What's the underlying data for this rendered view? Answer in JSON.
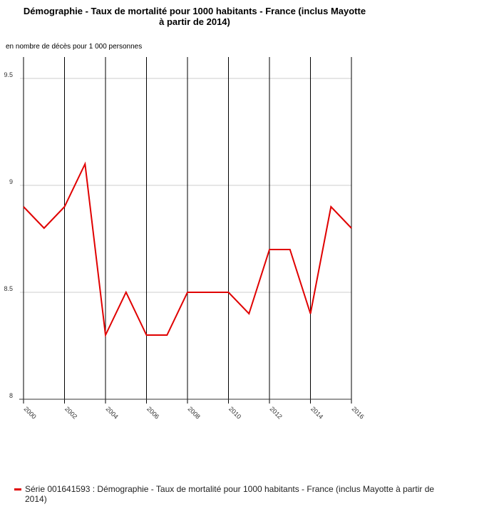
{
  "chart_data": {
    "type": "line",
    "title": "Démographie - Taux de mortalité pour 1000 habitants - France (inclus Mayotte\nà partir de 2014)",
    "subtitle": "en nombre de décès pour 1 000 personnes",
    "x": [
      2000,
      2001,
      2002,
      2003,
      2004,
      2005,
      2006,
      2007,
      2008,
      2009,
      2010,
      2011,
      2012,
      2013,
      2014,
      2015,
      2016
    ],
    "x_ticks": [
      "2000",
      "2002",
      "2004",
      "2006",
      "2008",
      "2010",
      "2012",
      "2014",
      "2016"
    ],
    "y_ticks": [
      "8",
      "8.5",
      "9",
      "9.5"
    ],
    "ylim": [
      8,
      9.6
    ],
    "xlim": [
      2000,
      2016
    ],
    "grid": true,
    "legend_placement": "bottom-left",
    "series": [
      {
        "name": "Série 001641593 : Démographie - Taux de mortalité pour 1000 habitants - France (inclus Mayotte à partir de 2014)",
        "color": "#e00000",
        "values": [
          8.9,
          8.8,
          8.9,
          9.1,
          8.3,
          8.5,
          8.3,
          8.3,
          8.5,
          8.5,
          8.5,
          8.4,
          8.7,
          8.7,
          8.4,
          8.9,
          8.8
        ]
      }
    ]
  }
}
